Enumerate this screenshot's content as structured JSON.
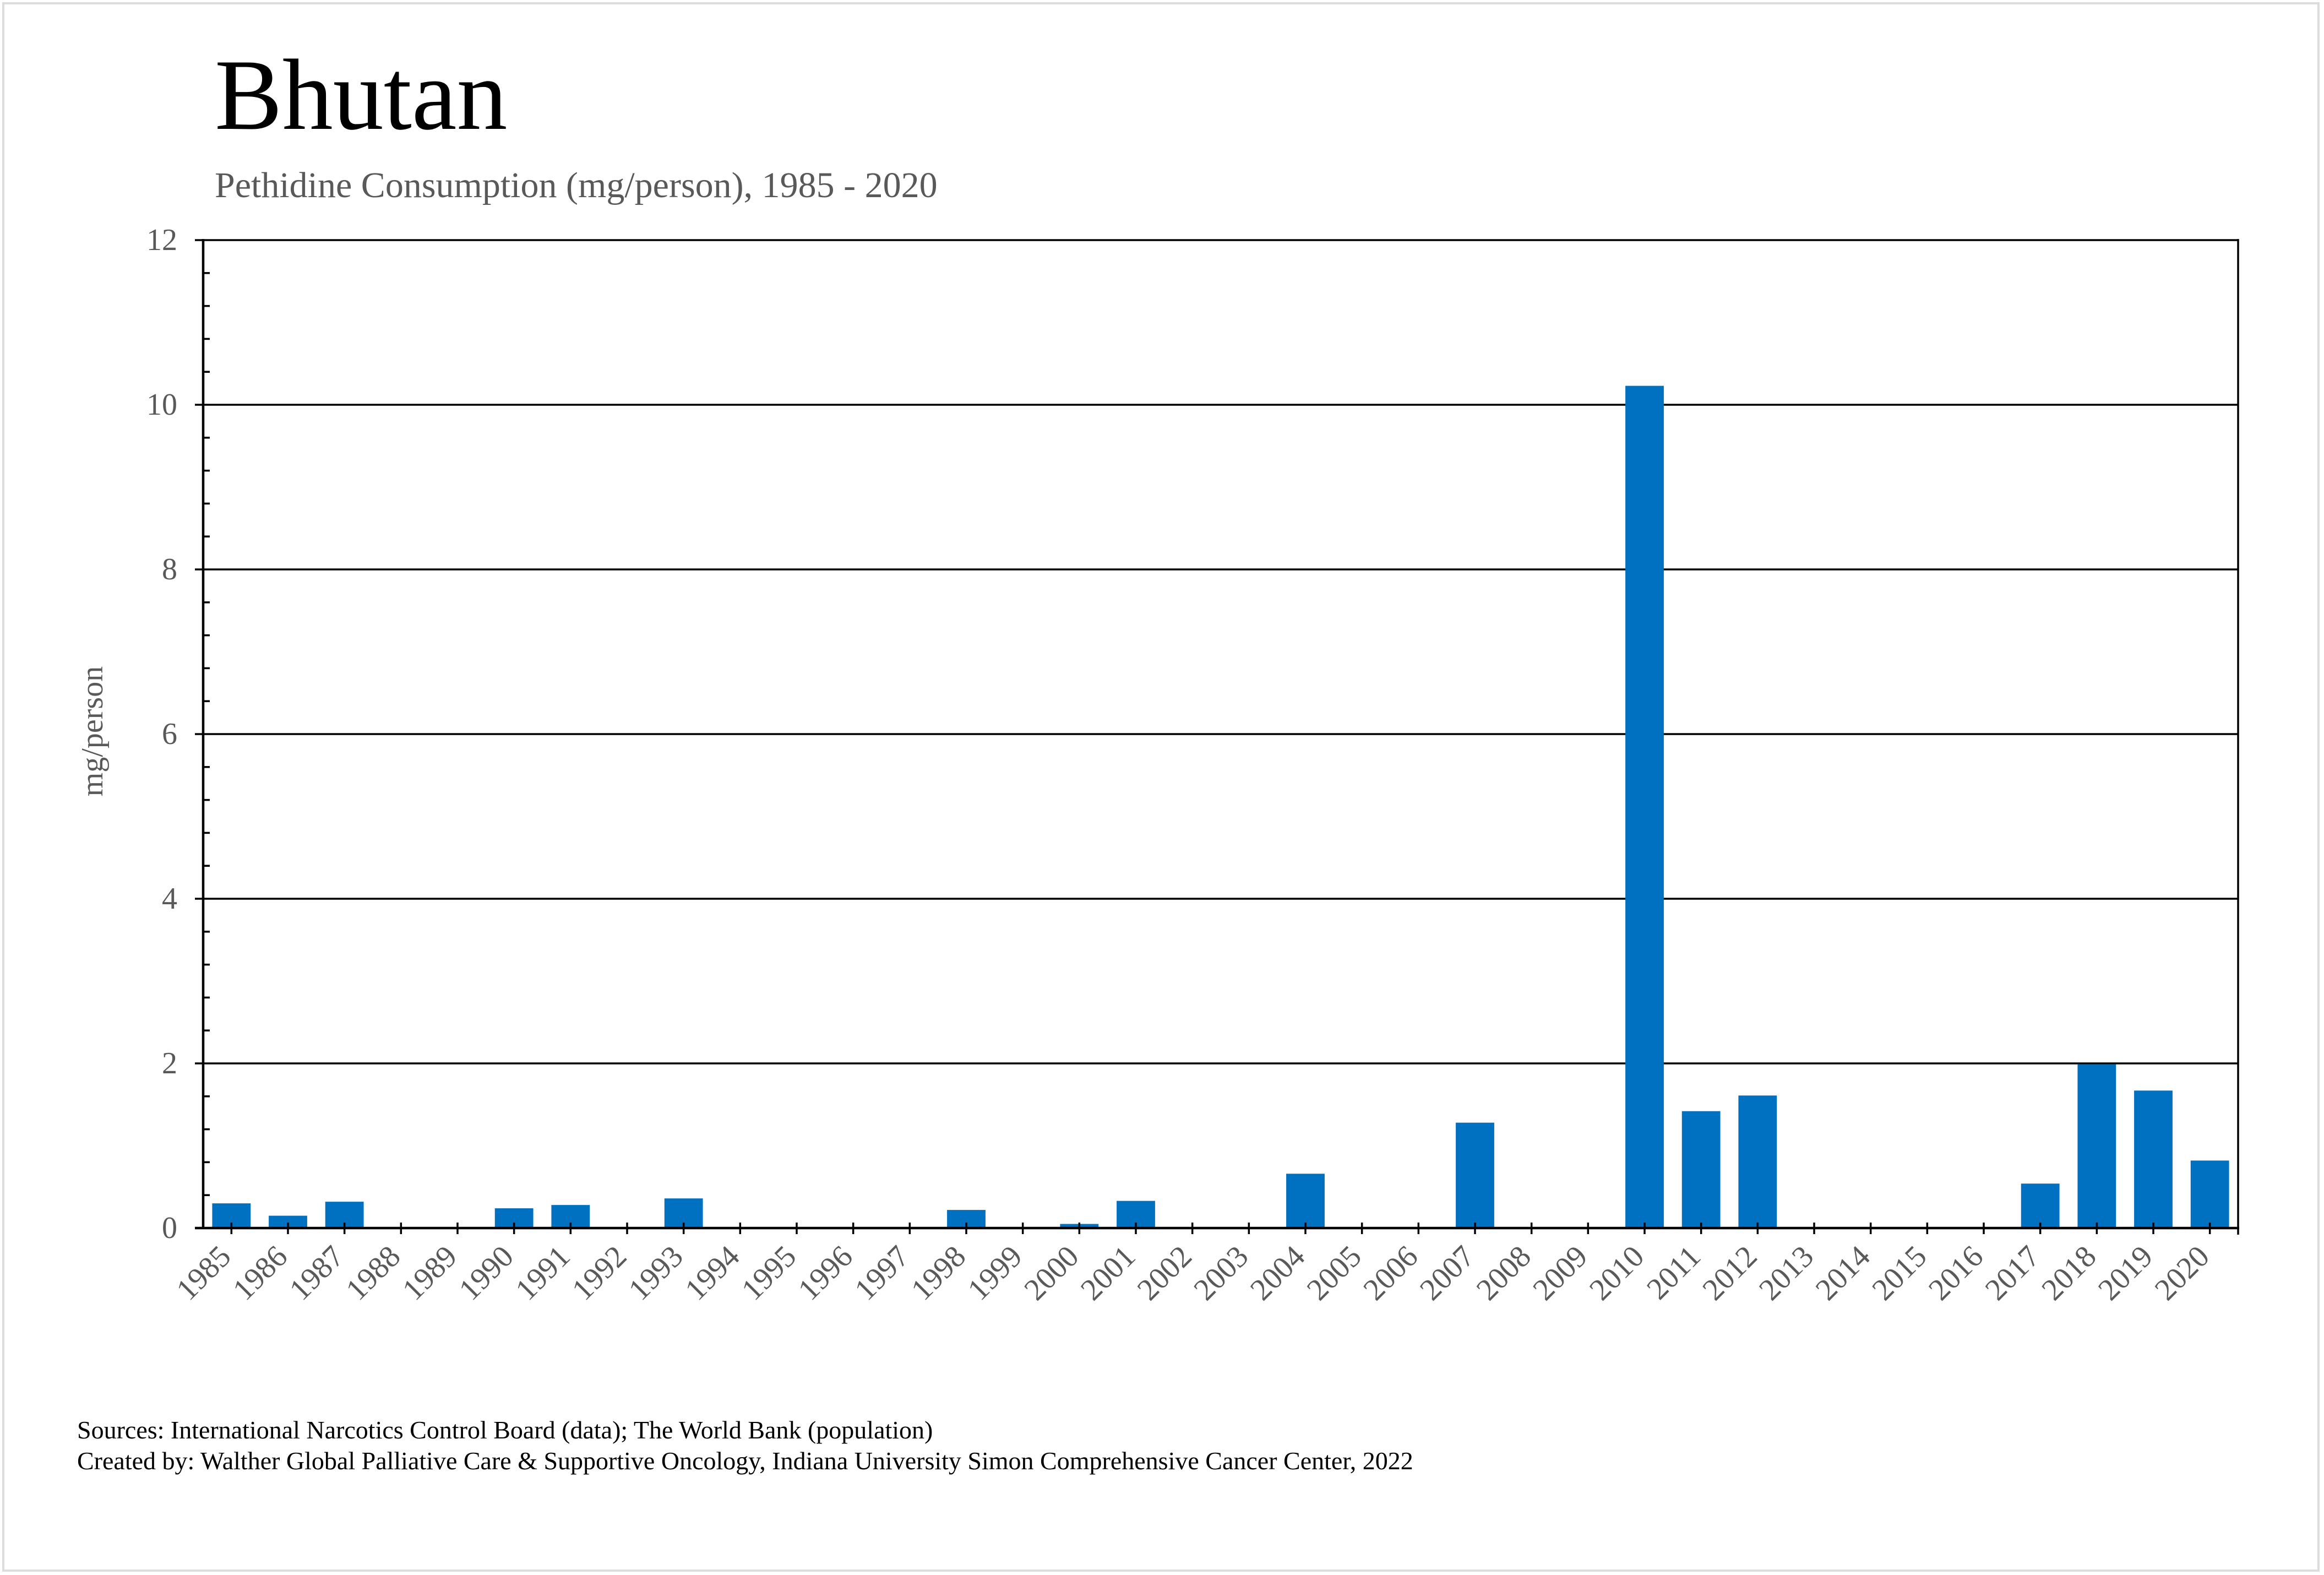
{
  "chart_data": {
    "type": "bar",
    "title": "Bhutan",
    "subtitle": "Pethidine Consumption (mg/person), 1985 - 2020",
    "xlabel": "",
    "ylabel": "mg/person",
    "ylim": [
      0,
      12
    ],
    "y_major_ticks": [
      0,
      2,
      4,
      6,
      8,
      10,
      12
    ],
    "y_minor_tick_step": 0.4,
    "grid": true,
    "legend": "none",
    "bar_color": "#0070C0",
    "categories": [
      "1985",
      "1986",
      "1987",
      "1988",
      "1989",
      "1990",
      "1991",
      "1992",
      "1993",
      "1994",
      "1995",
      "1996",
      "1997",
      "1998",
      "1999",
      "2000",
      "2001",
      "2002",
      "2003",
      "2004",
      "2005",
      "2006",
      "2007",
      "2008",
      "2009",
      "2010",
      "2011",
      "2012",
      "2013",
      "2014",
      "2015",
      "2016",
      "2017",
      "2018",
      "2019",
      "2020"
    ],
    "values": [
      0.3,
      0.15,
      0.32,
      0,
      0,
      0.24,
      0.28,
      0,
      0.36,
      0,
      0,
      0,
      0,
      0.22,
      0,
      0.05,
      0.33,
      0,
      0,
      0.66,
      0,
      0,
      1.28,
      0,
      0,
      10.23,
      1.42,
      1.61,
      0,
      0,
      0,
      0,
      0.54,
      1.99,
      1.67,
      0.82
    ]
  },
  "footer": {
    "sources": "Sources: International Narcotics Control Board (data); The World Bank (population)",
    "created_by": "Created by: Walther Global Palliative Care & Supportive Oncology, Indiana University Simon Comprehensive Cancer Center, 2022"
  }
}
